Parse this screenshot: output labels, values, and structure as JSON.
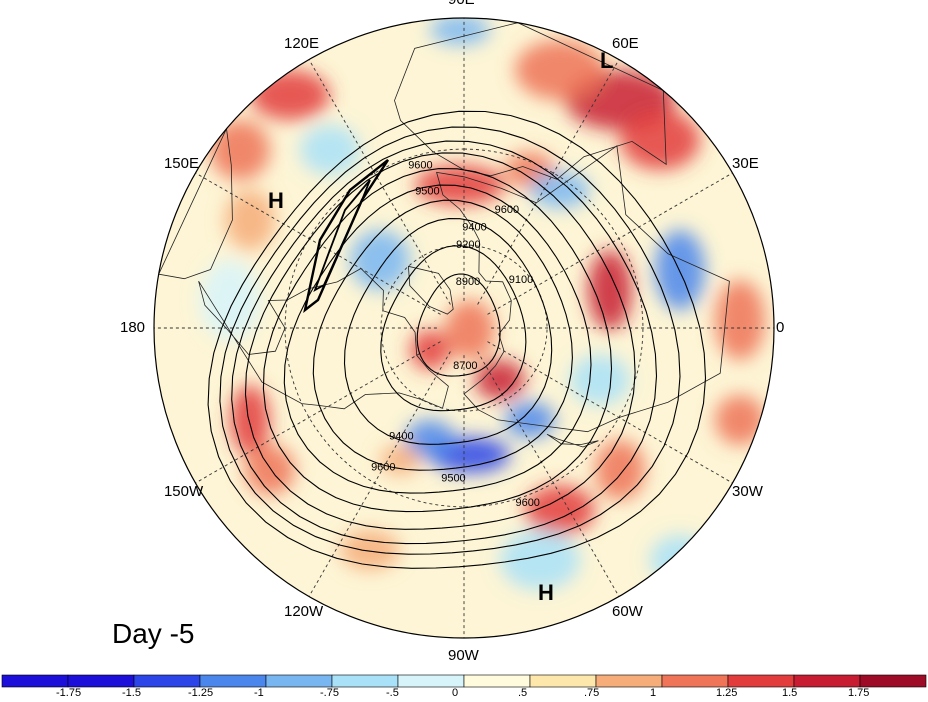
{
  "day_label": "Day -5",
  "lon_labels": [
    "90E",
    "60E",
    "30E",
    "0",
    "30W",
    "60W",
    "90W",
    "120W",
    "150W",
    "180",
    "150E",
    "120E"
  ],
  "pressure_markers": [
    {
      "label": "H",
      "lon": 170,
      "lat": 32
    },
    {
      "label": "L",
      "lon": 55,
      "lat": 40
    },
    {
      "label": "H",
      "lon": -72,
      "lat": 20
    }
  ],
  "colorbar": {
    "colors": [
      "#1c0fd9",
      "#2b45e8",
      "#4a86ec",
      "#78b6f2",
      "#a9e2f8",
      "#d7f4fb",
      "#fffbdc",
      "#fde7ab",
      "#f6ad7a",
      "#ef7458",
      "#e33c3c",
      "#c81c32",
      "#9e0b26"
    ],
    "tick_labels": [
      "-1.75",
      "-1.5",
      "-1.25",
      "-1",
      "-.75",
      "-.5",
      "0",
      ".5",
      ".75",
      "1",
      "1.25",
      "1.5",
      "1.75"
    ]
  },
  "contour_labels": [
    {
      "text": "9600",
      "lon": 20,
      "lat": 46
    },
    {
      "text": "9600",
      "lon": -150,
      "lat": 35
    },
    {
      "text": "9600",
      "lon": 160,
      "lat": 28
    },
    {
      "text": "9600",
      "lon": -15,
      "lat": 33
    },
    {
      "text": "9500",
      "lon": -15,
      "lat": 41
    },
    {
      "text": "9500",
      "lon": -176,
      "lat": 38
    },
    {
      "text": "9400",
      "lon": -150,
      "lat": 46
    },
    {
      "text": "9200",
      "lon": 3,
      "lat": 60
    },
    {
      "text": "9100",
      "lon": 50,
      "lat": 63
    },
    {
      "text": "8900",
      "lon": 5,
      "lat": 73
    },
    {
      "text": "8700",
      "lon": 178,
      "lat": 76
    },
    {
      "text": "9400",
      "lon": 6,
      "lat": 54
    }
  ]
}
